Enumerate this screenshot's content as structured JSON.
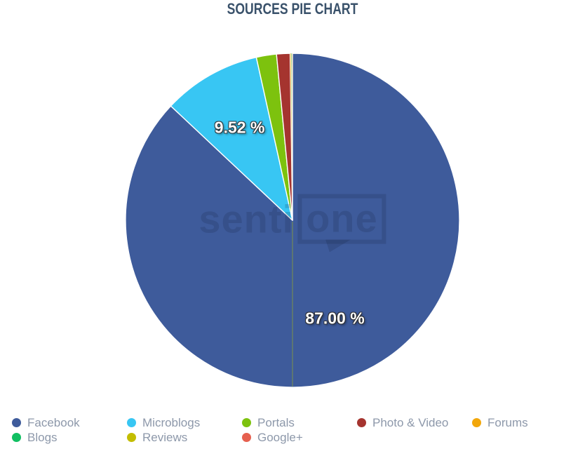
{
  "title": "SOURCES PIE CHART",
  "watermark": {
    "text_left": "senti",
    "text_boxed": "one"
  },
  "chart_data": {
    "type": "pie",
    "title": "SOURCES PIE CHART",
    "legend_position": "bottom",
    "start_angle_deg": 0,
    "direction": "clockwise",
    "labels_shown": [
      "87.00 %",
      "9.52 %"
    ],
    "slices": [
      {
        "name": "Facebook",
        "value": 87.0,
        "color": "#3e5b9b",
        "label": "87.00 %",
        "label_visible": true
      },
      {
        "name": "Microblogs",
        "value": 9.52,
        "color": "#38c6f3",
        "label": "9.52 %",
        "label_visible": true
      },
      {
        "name": "Portals",
        "value": 1.95,
        "color": "#7dc20e",
        "label_visible": false
      },
      {
        "name": "Photo & Video",
        "value": 1.3,
        "color": "#a5342f",
        "label_visible": false
      },
      {
        "name": "Forums",
        "value": 0.09,
        "color": "#f2a70b",
        "label_visible": false
      },
      {
        "name": "Blogs",
        "value": 0.06,
        "color": "#11bf62",
        "label_visible": false
      },
      {
        "name": "Reviews",
        "value": 0.05,
        "color": "#c3bd00",
        "label_visible": false
      },
      {
        "name": "Google+",
        "value": 0.03,
        "color": "#e6604f",
        "label_visible": false
      }
    ]
  }
}
